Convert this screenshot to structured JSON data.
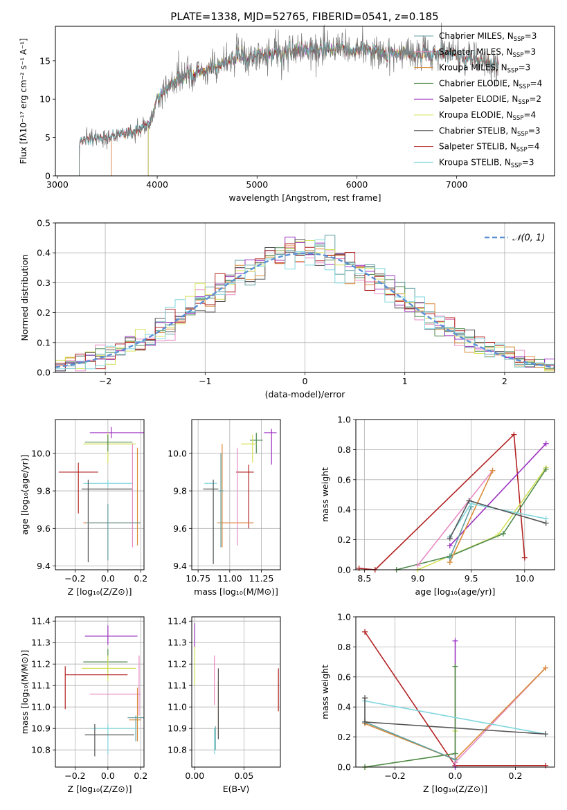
{
  "page": {
    "title": "PLATE=1338, MJD=52765, FIBERID=0541, z=0.185"
  },
  "colors": {
    "chab_miles": "#5f9ea0",
    "salp_miles": "#e78ac3",
    "krou_miles": "#d98c3a",
    "chab_elodie": "#4f8a4f",
    "salp_elodie": "#9b30c0",
    "krou_elodie": "#d4e157",
    "chab_stelib": "#555555",
    "salp_stelib": "#b22222",
    "krou_stelib": "#7fd6dd",
    "normal": "#5b8fd6",
    "grid": "#b0b0b0"
  },
  "chart_data": [
    {
      "id": "spectrum",
      "type": "line",
      "xlabel": "wavelength [Angstrom, rest frame]",
      "ylabel": "Flux [fλ10⁻¹⁷ erg cm⁻² s⁻¹ A⁻¹]",
      "xlim": [
        2980,
        7980
      ],
      "ylim": [
        0,
        19.5
      ],
      "xticks": [
        3000,
        4000,
        5000,
        6000,
        7000
      ],
      "yticks": [
        0,
        5,
        10,
        15
      ],
      "legend_position": "top-right",
      "series": [
        {
          "name": "Chabrier MILES, N_SSP=3",
          "ckey": "chab_miles",
          "start": 3540,
          "end": 7420
        },
        {
          "name": "Salpeter MILES, N_SSP=3",
          "ckey": "salp_miles",
          "start": 3540,
          "end": 7420
        },
        {
          "name": "Kroupa MILES, N_SSP=3",
          "ckey": "krou_miles",
          "start": 3540,
          "end": 7420
        },
        {
          "name": "Chabrier ELODIE, N_SSP=4",
          "ckey": "chab_elodie",
          "start": 3910,
          "end": 6800
        },
        {
          "name": "Salpeter ELODIE, N_SSP=2",
          "ckey": "salp_elodie",
          "start": 3910,
          "end": 6800
        },
        {
          "name": "Kroupa ELODIE, N_SSP=4",
          "ckey": "krou_elodie",
          "start": 3910,
          "end": 6800
        },
        {
          "name": "Chabrier STELIB, N_SSP=3",
          "ckey": "chab_stelib",
          "start": 3220,
          "end": 7420
        },
        {
          "name": "Salpeter STELIB, N_SSP=4",
          "ckey": "salp_stelib",
          "start": 3220,
          "end": 7420
        },
        {
          "name": "Kroupa STELIB, N_SSP=3",
          "ckey": "krou_stelib",
          "start": 3220,
          "end": 7420
        }
      ],
      "data_envelope": {
        "x": [
          3220,
          3400,
          3600,
          3800,
          3950,
          4000,
          4200,
          4400,
          4600,
          4800,
          5000,
          5200,
          5500,
          6000,
          6500,
          7000,
          7400
        ],
        "y": [
          4.5,
          5.0,
          5.3,
          5.9,
          7.3,
          10.5,
          12.5,
          13.3,
          14.3,
          15.3,
          15.6,
          15.9,
          16.4,
          16.4,
          16.0,
          15.6,
          14.6
        ]
      }
    },
    {
      "id": "residuals",
      "type": "step",
      "xlabel": "(data-model)/error",
      "ylabel": "Normed distribution",
      "xlim": [
        -2.5,
        2.5
      ],
      "ylim": [
        0,
        0.5
      ],
      "xticks": [
        -2,
        -1,
        0,
        1,
        2
      ],
      "yticks": [
        0.0,
        0.1,
        0.2,
        0.3,
        0.4,
        0.5
      ],
      "bin_width": 0.1,
      "normal_curve": {
        "name": "𝒩(0, 1)",
        "mean": 0,
        "sigma": 1
      },
      "legend_position": "top-right"
    },
    {
      "id": "age_Z",
      "type": "errorbar",
      "xlabel": "Z [log₁₀(Z/Z⊙)]",
      "ylabel": "age  [log₁₀(age/yr)]",
      "xlim": [
        -0.32,
        0.22
      ],
      "ylim": [
        9.38,
        10.18
      ],
      "xticks": [
        -0.2,
        0.0,
        0.2
      ],
      "yticks": [
        9.4,
        9.6,
        9.8,
        10.0
      ],
      "points": [
        {
          "ckey": "salp_elodie",
          "x": 0.02,
          "xerr": [
            0.13,
            0.2
          ],
          "y": 10.11,
          "yerr": [
            0.03,
            0.03
          ]
        },
        {
          "ckey": "krou_elodie",
          "x": 0.0,
          "xerr": [
            0.15,
            0.17
          ],
          "y": 10.05,
          "yerr": [
            0.1,
            0.06
          ]
        },
        {
          "ckey": "chab_elodie",
          "x": 0.0,
          "xerr": [
            0.14,
            0.15
          ],
          "y": 10.06,
          "yerr": [
            0.05,
            0.04
          ]
        },
        {
          "ckey": "salp_stelib",
          "x": -0.18,
          "xerr": [
            0.12,
            0.12
          ],
          "y": 9.9,
          "yerr": [
            0.22,
            0.05
          ]
        },
        {
          "ckey": "krou_stelib",
          "x": 0.0,
          "xerr": [
            0.15,
            0.15
          ],
          "y": 9.84,
          "yerr": [
            0.02,
            0.02
          ]
        },
        {
          "ckey": "chab_stelib",
          "x": -0.12,
          "xerr": [
            0.04,
            0.27
          ],
          "y": 9.81,
          "yerr": [
            0.39,
            0.05
          ]
        },
        {
          "ckey": "salp_miles",
          "x": 0.15,
          "xerr": [
            0.3,
            0.05
          ],
          "y": 9.63,
          "yerr": [
            0.13,
            0.42
          ]
        },
        {
          "ckey": "krou_miles",
          "x": 0.18,
          "xerr": [
            0.33,
            0.02
          ],
          "y": 9.63,
          "yerr": [
            0.12,
            0.4
          ]
        },
        {
          "ckey": "chab_miles",
          "x": 0.0,
          "xerr": [
            0.13,
            0.2
          ],
          "y": 9.63,
          "yerr": [
            0.2,
            0.1
          ]
        }
      ]
    },
    {
      "id": "age_mass",
      "type": "errorbar",
      "xlabel": "mass [log₁₀(M/M⊙)]",
      "ylabel": "",
      "xlim": [
        10.7,
        11.4
      ],
      "ylim": [
        9.38,
        10.18
      ],
      "xticks": [
        10.75,
        11.0,
        11.25
      ],
      "yticks": [
        9.4,
        9.6,
        9.8,
        10.0
      ],
      "points": [
        {
          "ckey": "salp_elodie",
          "x": 11.33,
          "xerr": [
            0.06,
            0.04
          ],
          "y": 10.11,
          "yerr": [
            0.17,
            0.02
          ]
        },
        {
          "ckey": "chab_elodie",
          "x": 11.21,
          "xerr": [
            0.05,
            0.05
          ],
          "y": 10.07,
          "yerr": [
            0.07,
            0.04
          ]
        },
        {
          "ckey": "krou_elodie",
          "x": 11.18,
          "xerr": [
            0.09,
            0.03
          ],
          "y": 10.05,
          "yerr": [
            0.1,
            0.05
          ]
        },
        {
          "ckey": "salp_stelib",
          "x": 11.15,
          "xerr": [
            0.1,
            0.04
          ],
          "y": 9.9,
          "yerr": [
            0.3,
            0.04
          ]
        },
        {
          "ckey": "krou_stelib",
          "x": 10.87,
          "xerr": [
            0.07,
            0.03
          ],
          "y": 9.84,
          "yerr": [
            0.42,
            0.02
          ]
        },
        {
          "ckey": "chab_stelib",
          "x": 10.87,
          "xerr": [
            0.08,
            0.04
          ],
          "y": 9.81,
          "yerr": [
            0.4,
            0.05
          ]
        },
        {
          "ckey": "salp_miles",
          "x": 11.06,
          "xerr": [
            0.12,
            0.12
          ],
          "y": 9.63,
          "yerr": [
            0.12,
            0.4
          ]
        },
        {
          "ckey": "krou_miles",
          "x": 10.94,
          "xerr": [
            0.04,
            0.25
          ],
          "y": 9.63,
          "yerr": [
            0.13,
            0.42
          ]
        },
        {
          "ckey": "chab_miles",
          "x": 10.93,
          "xerr": [
            0.02,
            0.02
          ],
          "y": 9.8,
          "yerr": [
            0.3,
            0.2
          ]
        }
      ]
    },
    {
      "id": "mw_age",
      "type": "line",
      "xlabel": "age  [log₁₀(age/yr)]",
      "ylabel": "mass weight",
      "xlim": [
        8.42,
        10.28
      ],
      "ylim": [
        0.0,
        1.0
      ],
      "xticks": [
        8.5,
        9.0,
        9.5,
        10.0
      ],
      "yticks": [
        0.0,
        0.2,
        0.4,
        0.6,
        0.8,
        1.0
      ],
      "series": [
        {
          "ckey": "salp_stelib",
          "x": [
            8.45,
            8.6,
            9.9,
            10.0
          ],
          "y": [
            0.01,
            0.0,
            0.9,
            0.08
          ]
        },
        {
          "ckey": "salp_elodie",
          "x": [
            9.3,
            10.2
          ],
          "y": [
            0.16,
            0.84
          ]
        },
        {
          "ckey": "krou_elodie",
          "x": [
            9.0,
            9.75,
            10.2
          ],
          "y": [
            0.0,
            0.23,
            0.68
          ]
        },
        {
          "ckey": "chab_elodie",
          "x": [
            8.8,
            9.3,
            9.8,
            10.2
          ],
          "y": [
            0.0,
            0.09,
            0.24,
            0.67
          ]
        },
        {
          "ckey": "salp_miles",
          "x": [
            9.0,
            9.7
          ],
          "y": [
            0.03,
            0.66
          ]
        },
        {
          "ckey": "krou_miles",
          "x": [
            9.3,
            9.7
          ],
          "y": [
            0.05,
            0.66
          ]
        },
        {
          "ckey": "chab_miles",
          "x": [
            9.3,
            9.5
          ],
          "y": [
            0.08,
            0.42
          ]
        },
        {
          "ckey": "krou_stelib",
          "x": [
            9.3,
            9.5,
            10.2
          ],
          "y": [
            0.22,
            0.44,
            0.34
          ]
        },
        {
          "ckey": "chab_stelib",
          "x": [
            9.3,
            9.48,
            10.2
          ],
          "y": [
            0.21,
            0.46,
            0.31
          ]
        }
      ]
    },
    {
      "id": "mass_Z",
      "type": "errorbar",
      "xlabel": "Z [log₁₀(Z/Z⊙)]",
      "ylabel": "mass [log₁₀(M/M⊙)]",
      "xlim": [
        -0.32,
        0.22
      ],
      "ylim": [
        10.72,
        11.42
      ],
      "xticks": [
        -0.2,
        0.0,
        0.2
      ],
      "yticks": [
        10.8,
        10.9,
        11.0,
        11.1,
        11.2,
        11.3,
        11.4
      ],
      "points": [
        {
          "ckey": "salp_elodie",
          "x": 0.0,
          "xerr": [
            0.14,
            0.18
          ],
          "y": 11.33,
          "yerr": [
            0.04,
            0.05
          ]
        },
        {
          "ckey": "chab_elodie",
          "x": 0.0,
          "xerr": [
            0.15,
            0.12
          ],
          "y": 11.21,
          "yerr": [
            0.05,
            0.06
          ]
        },
        {
          "ckey": "krou_elodie",
          "x": 0.0,
          "xerr": [
            0.16,
            0.17
          ],
          "y": 11.18,
          "yerr": [
            0.06,
            0.06
          ]
        },
        {
          "ckey": "salp_stelib",
          "x": -0.26,
          "xerr": [
            0.0,
            0.38
          ],
          "y": 11.15,
          "yerr": [
            0.16,
            0.04
          ]
        },
        {
          "ckey": "salp_miles",
          "x": 0.19,
          "xerr": [
            0.3,
            0.01
          ],
          "y": 11.06,
          "yerr": [
            0.1,
            0.18
          ]
        },
        {
          "ckey": "krou_miles",
          "x": 0.18,
          "xerr": [
            0.05,
            0.02
          ],
          "y": 10.94,
          "yerr": [
            0.1,
            0.15
          ]
        },
        {
          "ckey": "chab_miles",
          "x": 0.17,
          "xerr": [
            0.05,
            0.05
          ],
          "y": 10.95,
          "yerr": [
            0.11,
            0.01
          ]
        },
        {
          "ckey": "krou_stelib",
          "x": 0.0,
          "xerr": [
            0.1,
            0.17
          ],
          "y": 10.9,
          "yerr": [
            0.12,
            0.02
          ]
        },
        {
          "ckey": "chab_stelib",
          "x": -0.08,
          "xerr": [
            0.06,
            0.24
          ],
          "y": 10.87,
          "yerr": [
            0.1,
            0.05
          ]
        }
      ]
    },
    {
      "id": "mass_ebv",
      "type": "errorbar",
      "xlabel": "E(B-V)",
      "ylabel": "",
      "xlim": [
        -0.003,
        0.087
      ],
      "ylim": [
        10.72,
        11.42
      ],
      "xticks": [
        0.0,
        0.05
      ],
      "yticks": [
        10.8,
        10.9,
        11.0,
        11.1,
        11.2,
        11.3,
        11.4
      ],
      "points": [
        {
          "ckey": "salp_elodie",
          "x": 0.0,
          "xerr": [
            0,
            0
          ],
          "y": 11.33,
          "yerr": [
            0.05,
            0.06
          ]
        },
        {
          "ckey": "krou_elodie",
          "x": 0.0,
          "xerr": [
            0,
            0
          ],
          "y": 11.2,
          "yerr": [
            0.1,
            0.08
          ]
        },
        {
          "ckey": "salp_miles",
          "x": 0.02,
          "xerr": [
            0,
            0
          ],
          "y": 11.06,
          "yerr": [
            0.05,
            0.18
          ]
        },
        {
          "ckey": "krou_miles",
          "x": 0.024,
          "xerr": [
            0,
            0
          ],
          "y": 10.95,
          "yerr": [
            0.1,
            0.17
          ]
        },
        {
          "ckey": "chab_stelib",
          "x": 0.024,
          "xerr": [
            0,
            0
          ],
          "y": 11.0,
          "yerr": [
            0.15,
            0.18
          ]
        },
        {
          "ckey": "krou_stelib",
          "x": 0.02,
          "xerr": [
            0,
            0
          ],
          "y": 10.85,
          "yerr": [
            0.07,
            0.05
          ]
        },
        {
          "ckey": "chab_miles",
          "x": 0.021,
          "xerr": [
            0,
            0
          ],
          "y": 10.85,
          "yerr": [
            0.05,
            0.06
          ]
        },
        {
          "ckey": "salp_stelib",
          "x": 0.085,
          "xerr": [
            0,
            0
          ],
          "y": 11.08,
          "yerr": [
            0.1,
            0.1
          ]
        }
      ]
    },
    {
      "id": "mw_Z",
      "type": "line",
      "xlabel": "Z [log₁₀(Z/Z⊙)]",
      "ylabel": "mass weight",
      "xlim": [
        -0.33,
        0.33
      ],
      "ylim": [
        0.0,
        1.0
      ],
      "xticks": [
        -0.2,
        0.0,
        0.2
      ],
      "yticks": [
        0.0,
        0.2,
        0.4,
        0.6,
        0.8,
        1.0
      ],
      "series": [
        {
          "ckey": "salp_stelib",
          "x": [
            -0.3,
            0.0,
            0.3
          ],
          "y": [
            0.9,
            0.01,
            0.01
          ]
        },
        {
          "ckey": "salp_elodie",
          "x": [
            0.0,
            0.0
          ],
          "y": [
            0.0,
            0.84
          ]
        },
        {
          "ckey": "krou_elodie",
          "x": [
            -0.3,
            0.0,
            0.0,
            0.0
          ],
          "y": [
            0.0,
            0.09,
            0.24,
            0.67
          ]
        },
        {
          "ckey": "chab_elodie",
          "x": [
            -0.3,
            0.0,
            0.0
          ],
          "y": [
            0.0,
            0.09,
            0.67
          ]
        },
        {
          "ckey": "salp_miles",
          "x": [
            0.0,
            0.3
          ],
          "y": [
            0.03,
            0.66
          ]
        },
        {
          "ckey": "krou_miles",
          "x": [
            -0.3,
            0.0,
            0.3
          ],
          "y": [
            0.29,
            0.05,
            0.66
          ]
        },
        {
          "ckey": "chab_miles",
          "x": [
            -0.3,
            0.0
          ],
          "y": [
            0.3,
            0.05
          ]
        },
        {
          "ckey": "krou_stelib",
          "x": [
            -0.3,
            0.3
          ],
          "y": [
            0.44,
            0.22
          ]
        },
        {
          "ckey": "chab_stelib",
          "x": [
            -0.3,
            -0.3,
            0.3
          ],
          "y": [
            0.46,
            0.3,
            0.22
          ]
        }
      ]
    }
  ]
}
